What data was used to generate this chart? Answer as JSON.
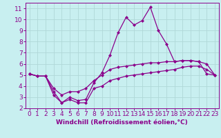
{
  "xlabel": "Windchill (Refroidissement éolien,°C)",
  "bg_color": "#c8eff0",
  "grid_color": "#b0d8d8",
  "line_color": "#8b008b",
  "xlim": [
    -0.5,
    23.5
  ],
  "ylim": [
    2,
    11.5
  ],
  "yticks": [
    2,
    3,
    4,
    5,
    6,
    7,
    8,
    9,
    10,
    11
  ],
  "xticks": [
    0,
    1,
    2,
    3,
    4,
    5,
    6,
    7,
    8,
    9,
    10,
    11,
    12,
    13,
    14,
    15,
    16,
    17,
    18,
    19,
    20,
    21,
    22,
    23
  ],
  "series1_x": [
    0,
    1,
    2,
    3,
    4,
    5,
    6,
    7,
    8,
    9,
    10,
    11,
    12,
    13,
    14,
    15,
    16,
    17,
    18,
    19,
    20,
    21,
    22,
    23
  ],
  "series1_y": [
    5.1,
    4.9,
    4.9,
    3.5,
    2.5,
    3.0,
    2.7,
    2.8,
    4.3,
    5.2,
    6.8,
    8.8,
    10.2,
    9.5,
    9.9,
    11.1,
    9.0,
    7.8,
    6.2,
    6.3,
    6.3,
    6.2,
    5.1,
    5.0
  ],
  "series2_x": [
    0,
    1,
    2,
    3,
    4,
    5,
    6,
    7,
    8,
    9,
    10,
    11,
    12,
    13,
    14,
    15,
    16,
    17,
    18,
    19,
    20,
    21,
    22,
    23
  ],
  "series2_y": [
    5.1,
    4.9,
    4.9,
    3.8,
    3.2,
    3.5,
    3.5,
    3.8,
    4.5,
    5.0,
    5.5,
    5.7,
    5.8,
    5.9,
    6.0,
    6.1,
    6.1,
    6.2,
    6.2,
    6.3,
    6.3,
    6.2,
    6.0,
    5.0
  ],
  "series3_x": [
    0,
    1,
    2,
    3,
    4,
    5,
    6,
    7,
    8,
    9,
    10,
    11,
    12,
    13,
    14,
    15,
    16,
    17,
    18,
    19,
    20,
    21,
    22,
    23
  ],
  "series3_y": [
    5.1,
    4.9,
    4.9,
    3.2,
    2.5,
    2.8,
    2.5,
    2.5,
    3.8,
    4.0,
    4.5,
    4.7,
    4.9,
    5.0,
    5.1,
    5.2,
    5.3,
    5.4,
    5.5,
    5.7,
    5.8,
    5.8,
    5.5,
    5.0
  ],
  "marker_size": 2.5,
  "line_width": 0.9,
  "xlabel_fontsize": 6.5,
  "tick_fontsize": 6.5
}
